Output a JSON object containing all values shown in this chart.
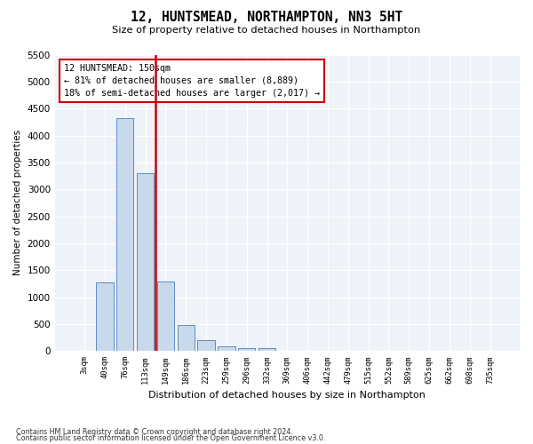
{
  "title": "12, HUNTSMEAD, NORTHAMPTON, NN3 5HT",
  "subtitle": "Size of property relative to detached houses in Northampton",
  "xlabel": "Distribution of detached houses by size in Northampton",
  "ylabel": "Number of detached properties",
  "footnote1": "Contains HM Land Registry data © Crown copyright and database right 2024.",
  "footnote2": "Contains public sector information licensed under the Open Government Licence v3.0.",
  "annotation_line1": "12 HUNTSMEAD: 150sqm",
  "annotation_line2": "← 81% of detached houses are smaller (8,889)",
  "annotation_line3": "18% of semi-detached houses are larger (2,017) →",
  "vline_color": "#cc0000",
  "bar_color": "#c9d9ec",
  "bar_edge_color": "#5b8ec4",
  "plot_bg_color": "#eef2f9",
  "categories": [
    "3sqm",
    "40sqm",
    "76sqm",
    "113sqm",
    "149sqm",
    "186sqm",
    "223sqm",
    "259sqm",
    "296sqm",
    "332sqm",
    "369sqm",
    "406sqm",
    "442sqm",
    "479sqm",
    "515sqm",
    "552sqm",
    "589sqm",
    "625sqm",
    "662sqm",
    "698sqm",
    "735sqm"
  ],
  "values": [
    0,
    1270,
    4330,
    3300,
    1290,
    490,
    210,
    90,
    60,
    55,
    0,
    0,
    0,
    0,
    0,
    0,
    0,
    0,
    0,
    0,
    0
  ],
  "ylim": [
    0,
    5500
  ],
  "yticks": [
    0,
    500,
    1000,
    1500,
    2000,
    2500,
    3000,
    3500,
    4000,
    4500,
    5000,
    5500
  ],
  "vline_position": 3.5
}
